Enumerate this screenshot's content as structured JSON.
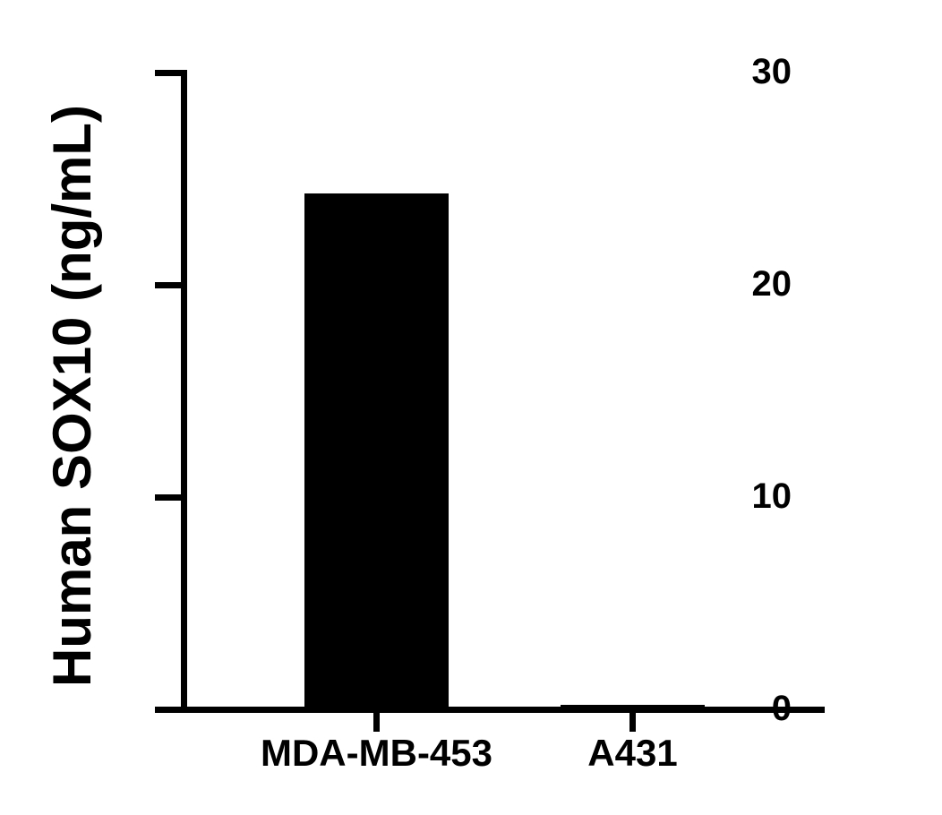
{
  "chart_data": {
    "type": "bar",
    "title": "",
    "categories": [
      "MDA-MB-453",
      "A431"
    ],
    "values": [
      24.3,
      0.2
    ],
    "series": [
      {
        "name": "Human SOX10",
        "values": [
          24.3,
          0.2
        ]
      }
    ],
    "xlabel": "",
    "ylabel": "Human SOX10 (ng/mL)",
    "ylim": [
      0,
      30
    ],
    "yticks": [
      0,
      10,
      20,
      30
    ],
    "ytick_labels": [
      "0",
      "10",
      "20",
      "30"
    ],
    "grid": false,
    "legend_position": "none",
    "bar_color": "#000000",
    "axis_color": "#000000",
    "text_color": "#000000",
    "background_color": "#ffffff"
  }
}
